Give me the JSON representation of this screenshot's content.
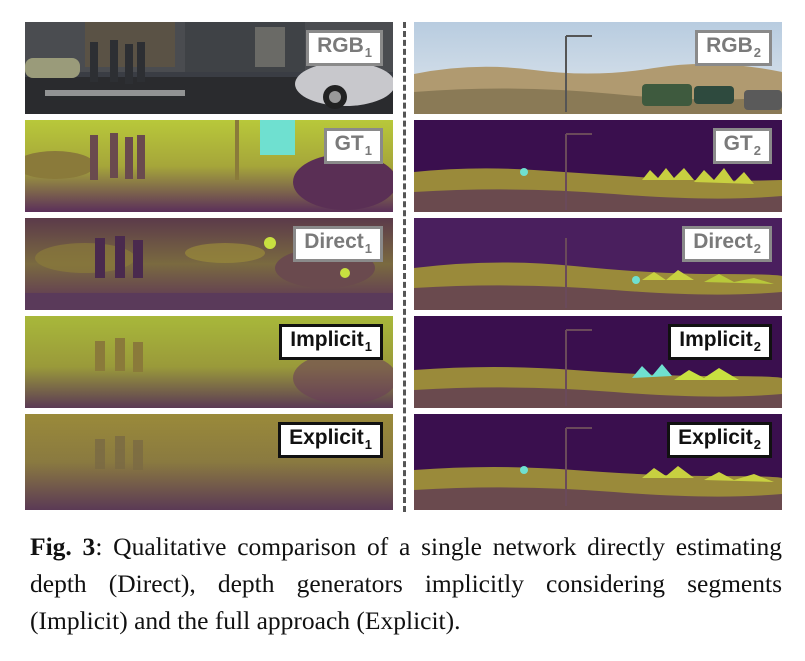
{
  "panels": {
    "rgb1": {
      "name": "RGB",
      "sub": "1"
    },
    "rgb2": {
      "name": "RGB",
      "sub": "2"
    },
    "gt1": {
      "name": "GT",
      "sub": "1"
    },
    "gt2": {
      "name": "GT",
      "sub": "2"
    },
    "direct1": {
      "name": "Direct",
      "sub": "1"
    },
    "direct2": {
      "name": "Direct",
      "sub": "2"
    },
    "implicit1": {
      "name": "Implicit",
      "sub": "1"
    },
    "implicit2": {
      "name": "Implicit",
      "sub": "2"
    },
    "explicit1": {
      "name": "Explicit",
      "sub": "1"
    },
    "explicit2": {
      "name": "Explicit",
      "sub": "2"
    }
  },
  "caption": {
    "label": "Fig. 3",
    "text": ": Qualitative comparison of a single network directly estimating depth (Direct), depth generators implicitly consid­ering segments (Implicit) and the full approach (Explicit)."
  },
  "colors": {
    "depth_near": "#4a1f5e",
    "depth_mid": "#8a6a3a",
    "depth_far": "#c8c83a",
    "sky_far": "#b5c83c",
    "cyan": "#6fe0d0",
    "purple_dark": "#3a0f4e"
  }
}
